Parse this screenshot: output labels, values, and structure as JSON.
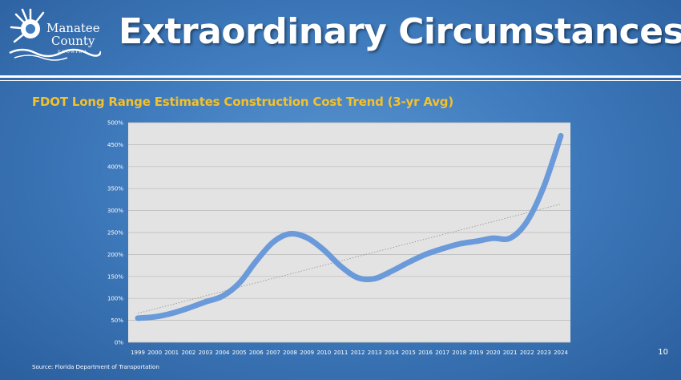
{
  "header": {
    "title": "Extraordinary Circumstances",
    "logo_line1": "Manatee",
    "logo_line2": "County",
    "logo_line3": "FLORIDA"
  },
  "subtitle": "FDOT Long Range Estimates Construction Cost Trend (3-yr Avg)",
  "page_number": "10",
  "source": "Source: Florida Department of Transportation",
  "colors": {
    "line": "#6a9ad9",
    "subtitle": "#f2c12e",
    "plot_bg": "#e3e3e3"
  },
  "chart_data": {
    "type": "line",
    "x": [
      "1999",
      "2000",
      "2001",
      "2002",
      "2003",
      "2004",
      "2005",
      "2006",
      "2007",
      "2008",
      "2009",
      "2010",
      "2011",
      "2012",
      "2013",
      "2014",
      "2015",
      "2016",
      "2017",
      "2018",
      "2019",
      "2020",
      "2021",
      "2022",
      "2023",
      "2024"
    ],
    "series": [
      {
        "values": [
          55,
          58,
          66,
          78,
          92,
          105,
          135,
          185,
          228,
          247,
          238,
          210,
          173,
          147,
          145,
          162,
          182,
          200,
          213,
          224,
          230,
          237,
          237,
          275,
          355,
          470
        ]
      }
    ],
    "trendline": {
      "type": "linear",
      "style": "dotted"
    },
    "yticks": [
      "0%",
      "50%",
      "100%",
      "150%",
      "200%",
      "250%",
      "300%",
      "350%",
      "400%",
      "450%",
      "500%"
    ],
    "ylim": [
      0,
      500
    ],
    "grid": "horizontal",
    "legend": "none"
  }
}
